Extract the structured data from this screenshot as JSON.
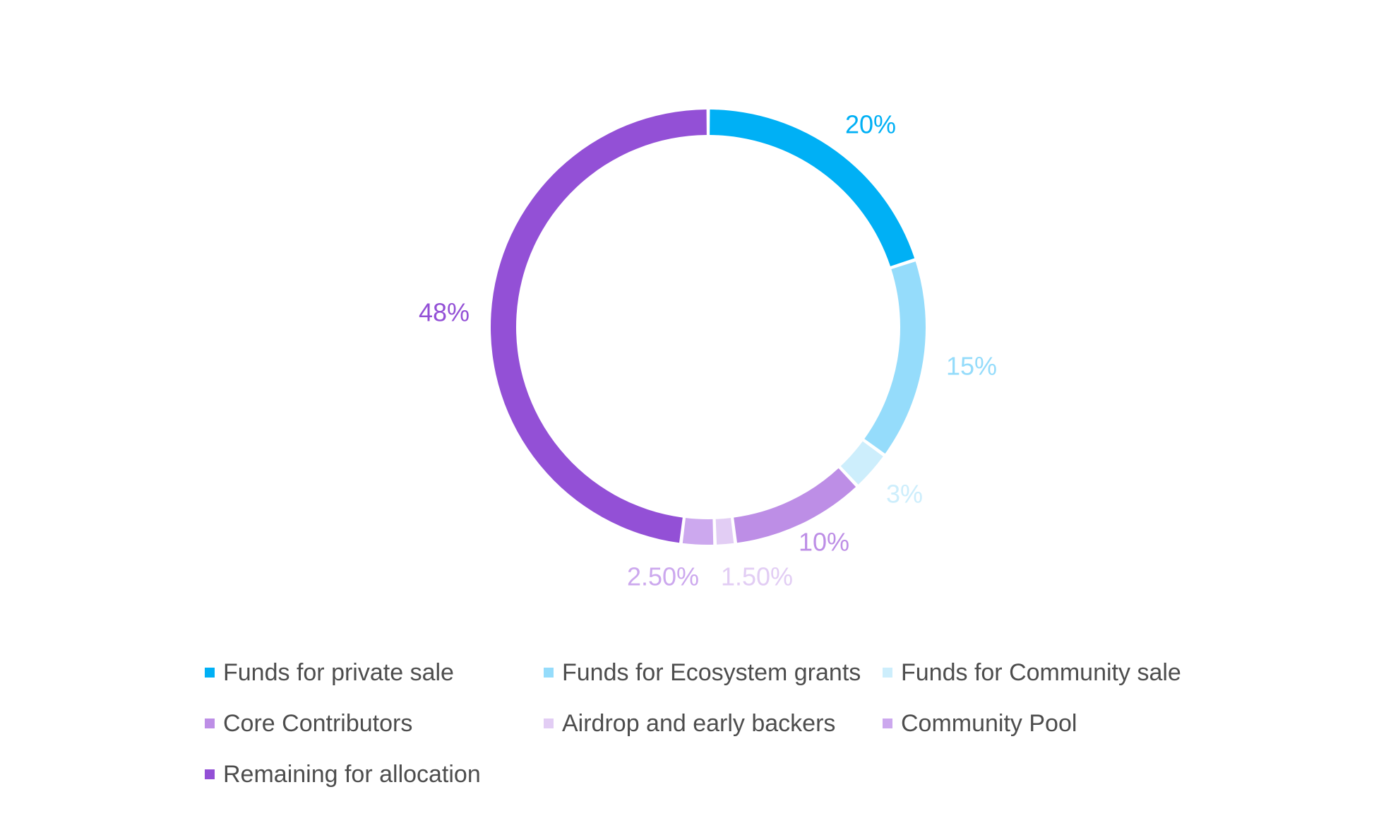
{
  "chart_data": {
    "type": "pie",
    "donut": true,
    "title": "",
    "legend_position": "bottom",
    "slices": [
      {
        "name": "Funds for private sale",
        "value": 20,
        "label": "20%",
        "color": "#00b0f5"
      },
      {
        "name": "Funds for Ecosystem grants",
        "value": 15,
        "label": "15%",
        "color": "#95dcfb"
      },
      {
        "name": "Funds for Community sale",
        "value": 3,
        "label": "3%",
        "color": "#cdeefc"
      },
      {
        "name": "Core Contributors",
        "value": 10,
        "label": "10%",
        "color": "#bd8ee6"
      },
      {
        "name": "Airdrop and early backers",
        "value": 1.5,
        "label": "1.50%",
        "color": "#e2cdf4"
      },
      {
        "name": "Community Pool",
        "value": 2.5,
        "label": "2.50%",
        "color": "#cca8ee"
      },
      {
        "name": "Remaining for allocation",
        "value": 48,
        "label": "48%",
        "color": "#9350d6"
      }
    ]
  }
}
